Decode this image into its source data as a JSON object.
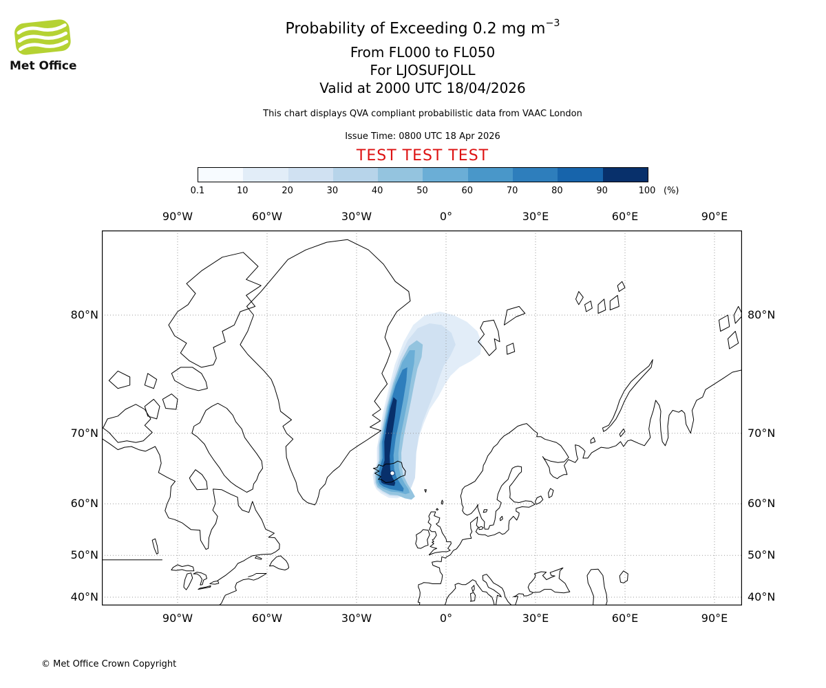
{
  "branding": {
    "logo_text": "Met Office"
  },
  "header": {
    "title_main": "Probability of Exceeding 0.2 mg m",
    "title_sup": "−3",
    "flight_levels": "From FL000 to FL050",
    "volcano": "For LJOSUFJOLL",
    "valid": "Valid at 2000 UTC 18/04/2026",
    "qva_note": "This chart displays QVA compliant probabilistic data from VAAC London",
    "issue_time": "Issue Time: 0800 UTC 18 Apr 2026",
    "test_banner": "TEST TEST TEST"
  },
  "legend": {
    "tick_labels": [
      "0.1",
      "10",
      "20",
      "30",
      "40",
      "50",
      "60",
      "70",
      "80",
      "90",
      "100"
    ],
    "unit_label": "(%)",
    "colors": [
      "#f7fbff",
      "#e2edf8",
      "#d0e1f2",
      "#b7d4ea",
      "#94c4df",
      "#6baed6",
      "#4997c9",
      "#2e7ebc",
      "#1764ab",
      "#08306b"
    ]
  },
  "map": {
    "lon_labels": [
      "90°W",
      "60°W",
      "30°W",
      "0°",
      "30°E",
      "60°E",
      "90°E"
    ],
    "lat_labels": [
      "80°N",
      "70°N",
      "60°N",
      "50°N",
      "40°N"
    ],
    "lon_degrees": [
      -90,
      -60,
      -30,
      0,
      30,
      60,
      90
    ],
    "lat_degrees": [
      80,
      70,
      60,
      50,
      40
    ]
  },
  "colors": {
    "test_red": "#dd1111",
    "logo_green": "#b5d233",
    "coastline": "#000000"
  },
  "footer": {
    "copyright": "© Met Office Crown Copyright"
  }
}
